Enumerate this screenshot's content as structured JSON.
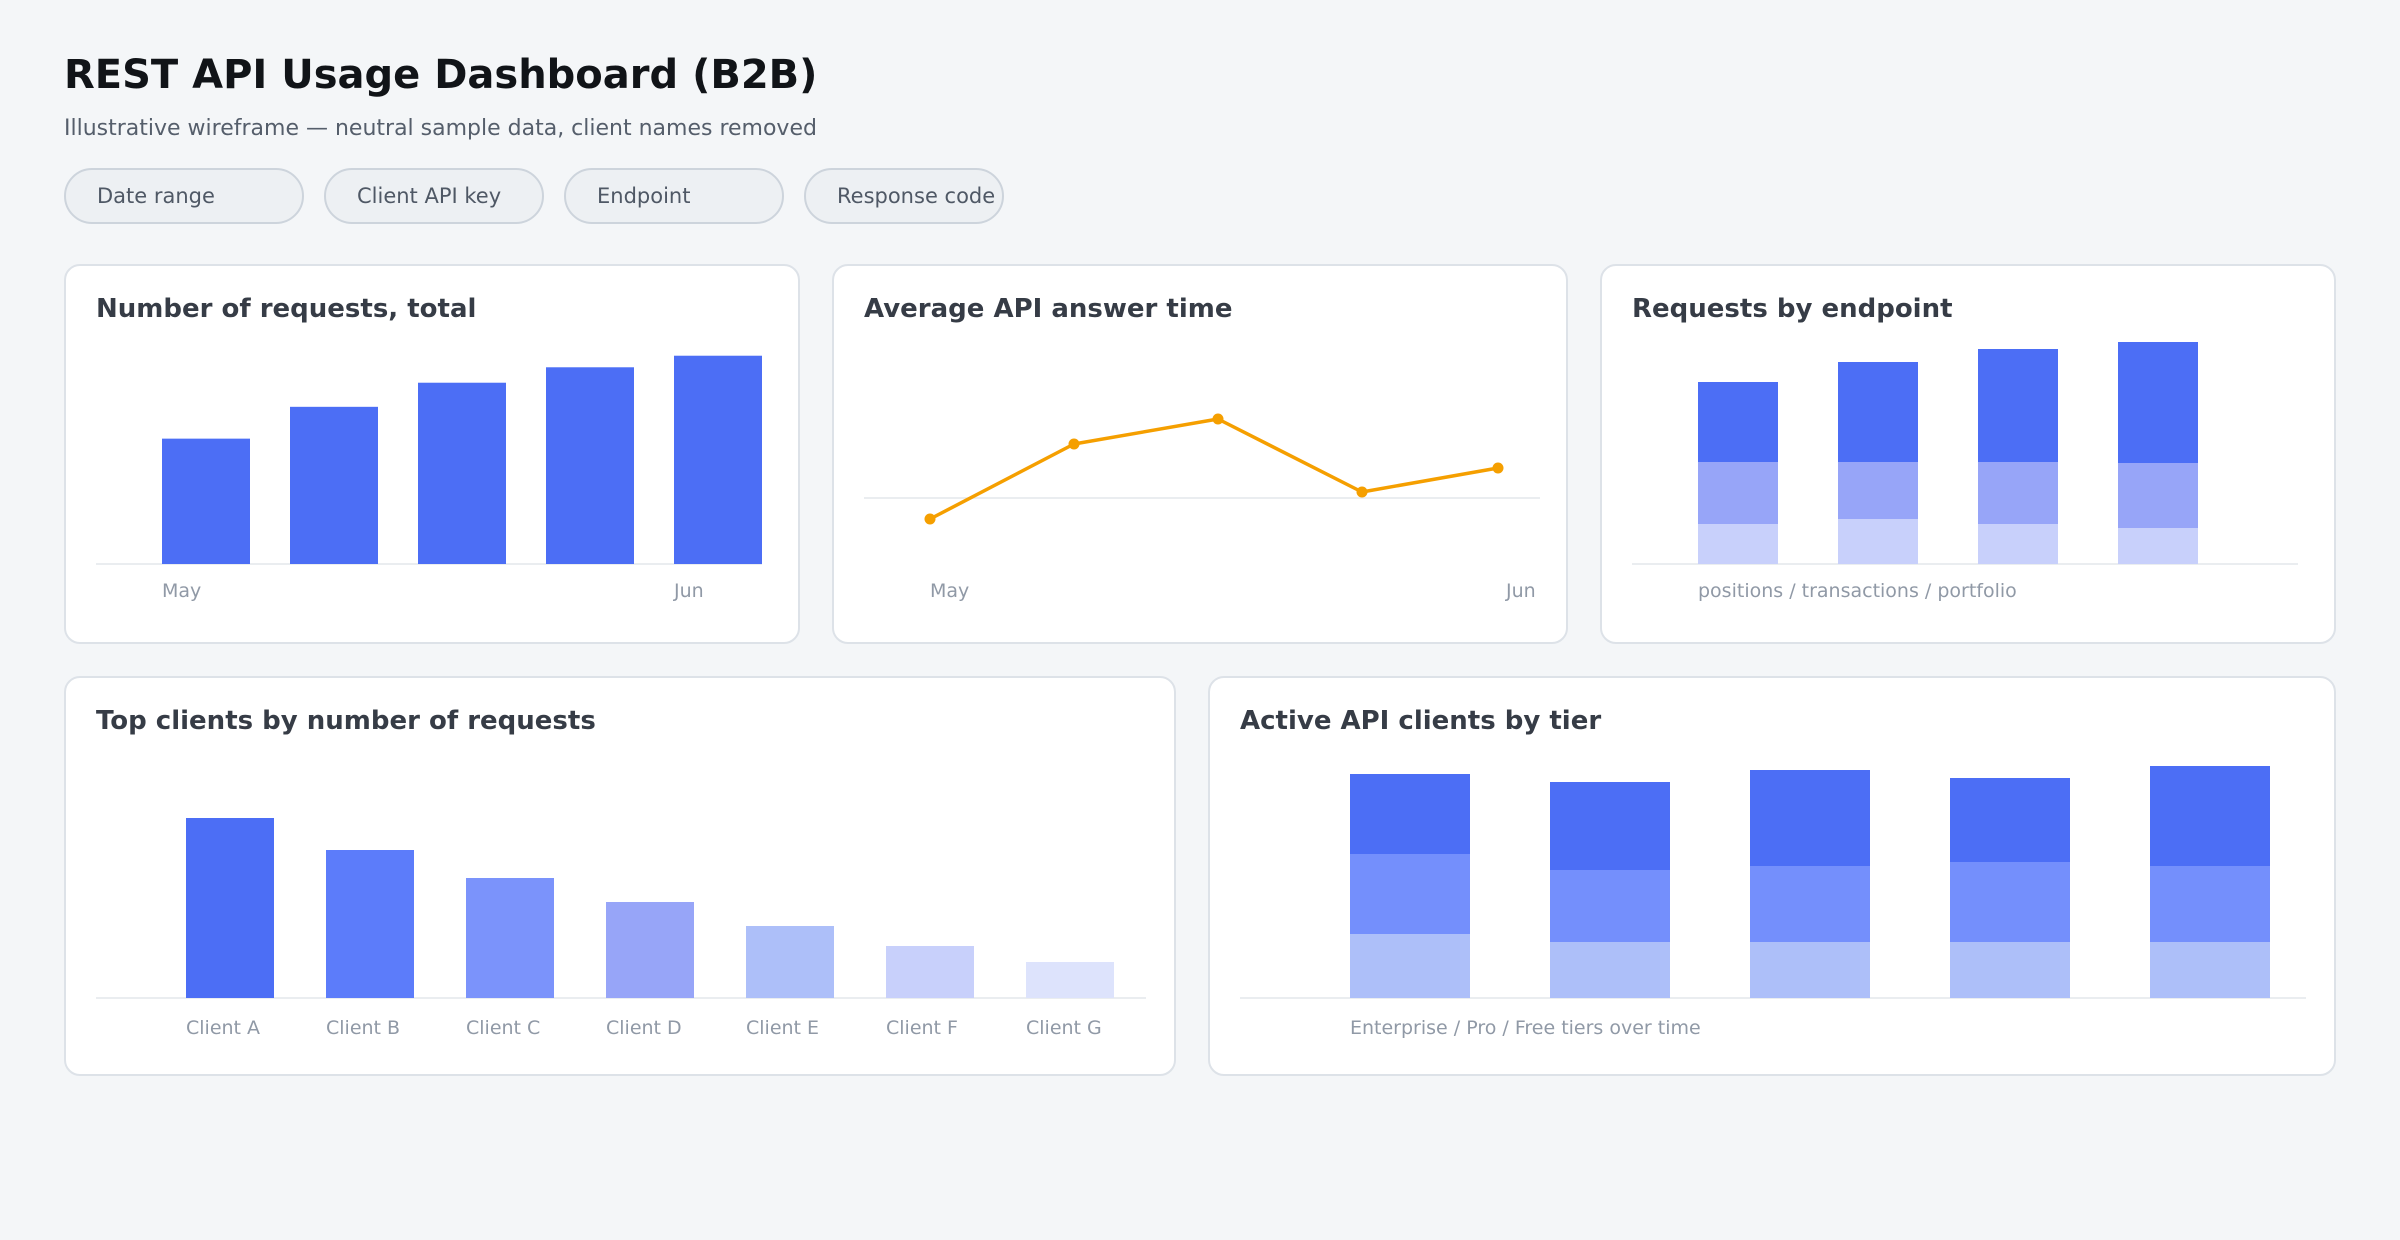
{
  "page": {
    "title": "REST API Usage Dashboard (B2B)",
    "subtitle": "Illustrative wireframe — neutral sample data, client names removed"
  },
  "filters": [
    {
      "label": "Date range"
    },
    {
      "label": "Client API key"
    },
    {
      "label": "Endpoint"
    },
    {
      "label": "Response code"
    }
  ],
  "cards": {
    "requests_total": {
      "title": "Number of requests, total"
    },
    "answer_time": {
      "title": "Average API answer time"
    },
    "by_endpoint": {
      "title": "Requests by endpoint"
    },
    "top_clients": {
      "title": "Top clients by number of requests"
    },
    "active_tiers": {
      "title": "Active API clients by tier"
    }
  },
  "colors": {
    "bar_primary": "#4c6ef5",
    "line": "#f59f00",
    "axis": "#e3e7ec",
    "tick_text": "#9099a6",
    "stack_dark": "#4c6ef5",
    "stack_mid_endpoint": "#97a5f8",
    "stack_light_endpoint": "#c8d0fb",
    "stack_mid_tier": "#748ffc",
    "stack_light_tier": "#adbff9",
    "client_shades": [
      "#4c6ef5",
      "#5c7cfa",
      "#7b93fb",
      "#97a5f8",
      "#adbff9",
      "#c8d0fb",
      "#dde3fc"
    ]
  },
  "chart_data": [
    {
      "id": "requests_total",
      "type": "bar",
      "title": "Number of requests, total",
      "tick_labels": [
        "May",
        "",
        "",
        "",
        "Jun"
      ],
      "values": [
        130,
        163,
        188,
        204,
        216
      ],
      "ylim": [
        0,
        224
      ]
    },
    {
      "id": "answer_time",
      "type": "line",
      "title": "Average API answer time",
      "tick_labels": [
        "May",
        "Jun"
      ],
      "values": [
        80,
        155,
        180,
        107,
        131
      ],
      "reference_line": 101,
      "ylim": [
        0,
        255
      ]
    },
    {
      "id": "by_endpoint",
      "type": "bar",
      "stacked": true,
      "title": "Requests by endpoint",
      "caption": "positions / transactions / portfolio",
      "categories": [
        "",
        "",
        "",
        ""
      ],
      "series": [
        {
          "values": [
            40,
            45,
            40,
            36
          ]
        },
        {
          "values": [
            62,
            57,
            62,
            65
          ]
        },
        {
          "values": [
            80,
            100,
            113,
            121
          ]
        }
      ],
      "ylim": [
        0,
        225
      ]
    },
    {
      "id": "top_clients",
      "type": "bar",
      "title": "Top clients by number of requests",
      "categories": [
        "Client A",
        "Client B",
        "Client C",
        "Client D",
        "Client E",
        "Client F",
        "Client G"
      ],
      "values": [
        180,
        148,
        120,
        96,
        72,
        52,
        36
      ],
      "ylim": [
        0,
        200
      ]
    },
    {
      "id": "active_tiers",
      "type": "bar",
      "stacked": true,
      "title": "Active API clients by tier",
      "caption": "Enterprise / Pro / Free tiers over time",
      "categories": [
        "",
        "",
        "",
        "",
        ""
      ],
      "series": [
        {
          "values": [
            64,
            56,
            56,
            56,
            56
          ]
        },
        {
          "values": [
            80,
            72,
            76,
            80,
            76
          ]
        },
        {
          "values": [
            80,
            88,
            96,
            84,
            100
          ]
        }
      ],
      "ylim": [
        0,
        235
      ]
    }
  ]
}
